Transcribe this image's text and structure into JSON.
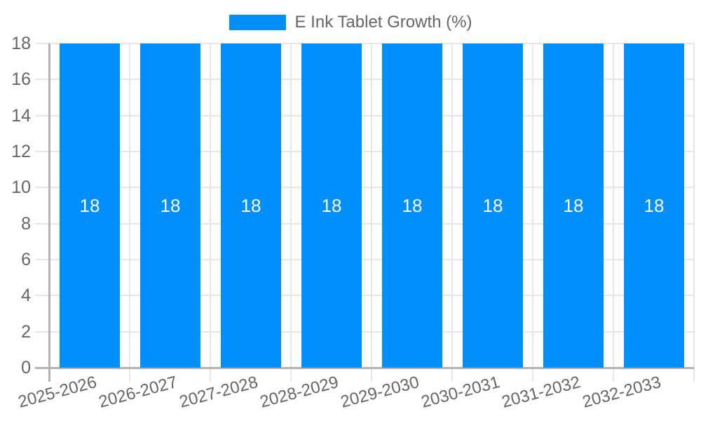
{
  "legend": {
    "label": "E Ink Tablet Growth (%)"
  },
  "chart_data": {
    "type": "bar",
    "title": "E Ink Tablet Growth (%)",
    "categories": [
      "2025-2026",
      "2026-2027",
      "2027-2028",
      "2028-2029",
      "2029-2030",
      "2030-2031",
      "2031-2032",
      "2032-2033"
    ],
    "values": [
      18,
      18,
      18,
      18,
      18,
      18,
      18,
      18
    ],
    "bar_labels": [
      "18",
      "18",
      "18",
      "18",
      "18",
      "18",
      "18",
      "18"
    ],
    "xlabel": "",
    "ylabel": "",
    "ylim": [
      0,
      18
    ],
    "ytick_step": 2,
    "ytick_labels": [
      "0",
      "2",
      "4",
      "6",
      "8",
      "10",
      "12",
      "14",
      "16",
      "18"
    ],
    "grid": true,
    "legend_position": "top",
    "x_label_rotation_deg": -15
  },
  "colors": {
    "bar": "#008FFB",
    "bar_label_text": "#ffffff",
    "grid_line": "#e6e6e6",
    "axis_line": "#b3b3b3",
    "tick_text": "#666666",
    "legend_text": "#666666",
    "background": "#ffffff"
  }
}
